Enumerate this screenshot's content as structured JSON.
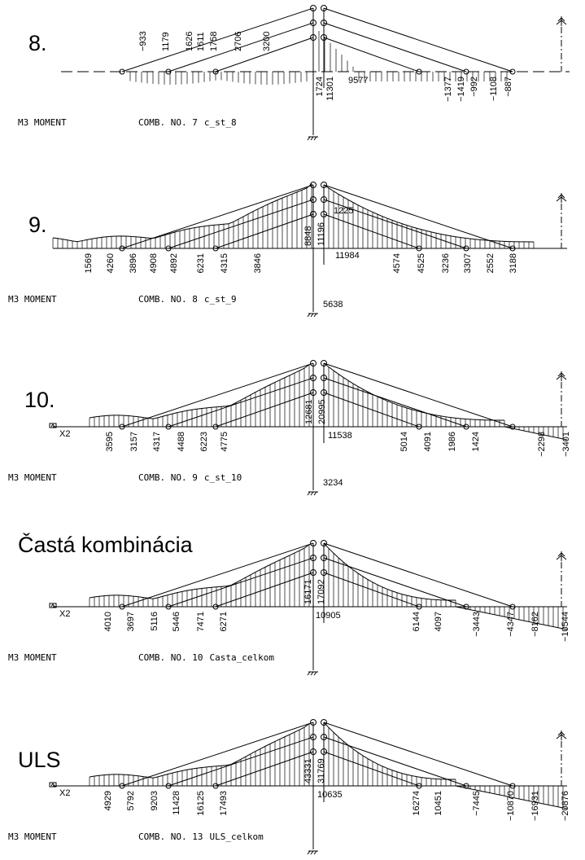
{
  "panels": [
    {
      "title": "8.",
      "labels": [
        "−933",
        "1179",
        "1626",
        "1611",
        "1758",
        "2706",
        "3200",
        "1724",
        "11301",
        "9577",
        "−1377",
        "−1419",
        "−992",
        "−1108",
        "−887"
      ],
      "caption": "M3 MOMENT",
      "combination": "COMB. NO. 7",
      "case": "c_st_8"
    },
    {
      "title": "9.",
      "labels": [
        "1569",
        "4260",
        "3896",
        "4908",
        "4892",
        "6231",
        "4315",
        "3846",
        "8848",
        "11196",
        "1225",
        "11984",
        "4574",
        "4525",
        "3236",
        "3307",
        "2552",
        "3188",
        "5638"
      ],
      "caption": "M3 MOMENT",
      "combination": "COMB. NO. 8",
      "case": "c_st_9"
    },
    {
      "title": "10.",
      "support": "X2",
      "labels": [
        "3595",
        "3157",
        "4317",
        "4488",
        "6223",
        "4775",
        "12681",
        "20995",
        "11538",
        "5014",
        "4091",
        "1986",
        "1424",
        "−2298",
        "−3401",
        "3234"
      ],
      "caption": "M3 MOMENT",
      "combination": "COMB. NO. 9",
      "case": "c_st_10"
    },
    {
      "title": "Častá kombinácia",
      "support": "X2",
      "labels": [
        "4010",
        "3697",
        "5116",
        "5446",
        "7471",
        "6271",
        "16171",
        "17092",
        "10905",
        "6144",
        "4097",
        "−3443",
        "−4347",
        "−8162",
        "−10544"
      ],
      "caption": "M3 MOMENT",
      "combination": "COMB. NO. 10",
      "case": "Casta_celkom"
    },
    {
      "title": "ULS",
      "support": "X2",
      "labels": [
        "4929",
        "5792",
        "9203",
        "11428",
        "16125",
        "17493",
        "43331",
        "31769",
        "10635",
        "16274",
        "10451",
        "−7445",
        "−10870",
        "−16931",
        "−20876"
      ],
      "caption": "M3 MOMENT",
      "combination": "COMB. NO. 13",
      "case": "ULS_celkom"
    }
  ]
}
